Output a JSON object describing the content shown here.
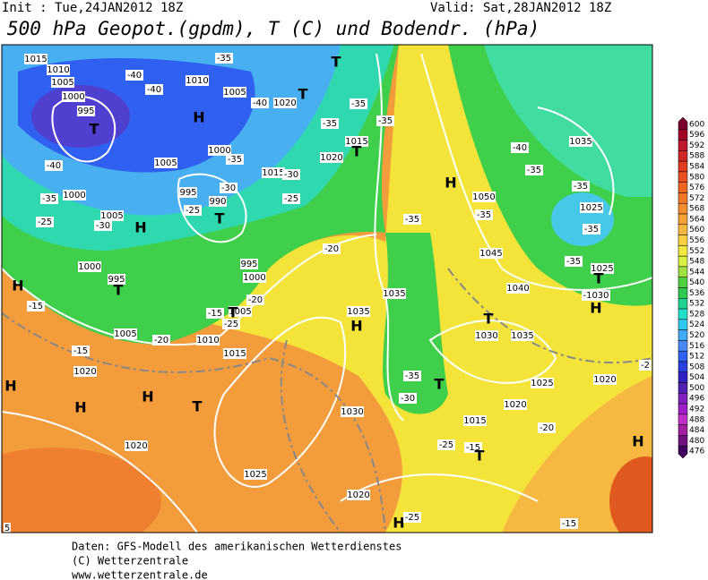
{
  "header": {
    "init": "Init : Tue,24JAN2012 18Z",
    "valid": "Valid: Sat,28JAN2012 18Z",
    "title": "500 hPa Geopot.(gpdm), T (C) und Bodendr. (hPa)"
  },
  "colorbar": {
    "values": [
      600,
      596,
      592,
      588,
      584,
      580,
      576,
      572,
      568,
      564,
      560,
      556,
      552,
      548,
      544,
      540,
      536,
      532,
      528,
      524,
      520,
      516,
      512,
      508,
      504,
      500,
      496,
      492,
      488,
      484,
      480,
      476
    ],
    "colors": [
      "#7a0030",
      "#a00028",
      "#c01830",
      "#d02828",
      "#e03a20",
      "#e85020",
      "#ee6420",
      "#f27828",
      "#f48c30",
      "#f6a038",
      "#f8b840",
      "#f8d040",
      "#f4e840",
      "#d8f040",
      "#a0e040",
      "#50d040",
      "#30c850",
      "#20d090",
      "#20e0c8",
      "#30c8f0",
      "#40a8f8",
      "#4888f8",
      "#3060f0",
      "#2840e0",
      "#3020c0",
      "#5020b0",
      "#8020c0",
      "#a020c8",
      "#c030c8",
      "#a020a0",
      "#701080",
      "#400060"
    ]
  },
  "map_labels": [
    "1015",
    "1010",
    "1005",
    "1000",
    "995",
    "T",
    "-40",
    "1000",
    "-35",
    "-25",
    "1005",
    "-30",
    "H",
    "1000",
    "995",
    "T",
    "H",
    "-15",
    "-40",
    "-40",
    "1010",
    "H",
    "1005",
    "-40",
    "1020",
    "-35",
    "T",
    "T",
    "-35",
    "-35",
    "-35",
    "1015",
    "T",
    "1020",
    "-35",
    "1000",
    "1005",
    "995",
    "-30",
    "990",
    "T",
    "-25",
    "1015",
    "-30",
    "-25",
    "995",
    "1000",
    "-20",
    "1005",
    "-25",
    "-15",
    "1010",
    "1015",
    "T",
    "1005",
    "-20",
    "-15",
    "1020",
    "H",
    "H",
    "H",
    "T",
    "1020",
    "1025",
    "1030",
    "1020",
    "H",
    "-25",
    "-35",
    "-30",
    "T",
    "1035",
    "1035",
    "H",
    "-20",
    "-35",
    "H",
    "1050",
    "-35",
    "1045",
    "T",
    "1030",
    "1035",
    "1040",
    "1025",
    "1020",
    "1015",
    "-25",
    "-15",
    "T",
    "-20",
    "1020",
    "H",
    "1035",
    "-40",
    "-35",
    "-35",
    "1025",
    "-35",
    "-35",
    "1025",
    "T",
    "-1030",
    "H",
    "-2",
    "-15",
    "5"
  ],
  "footer": [
    "Daten: GFS-Modell des amerikanischen Wetterdienstes",
    "(C) Wetterzentrale",
    "www.wetterzentrale.de"
  ]
}
